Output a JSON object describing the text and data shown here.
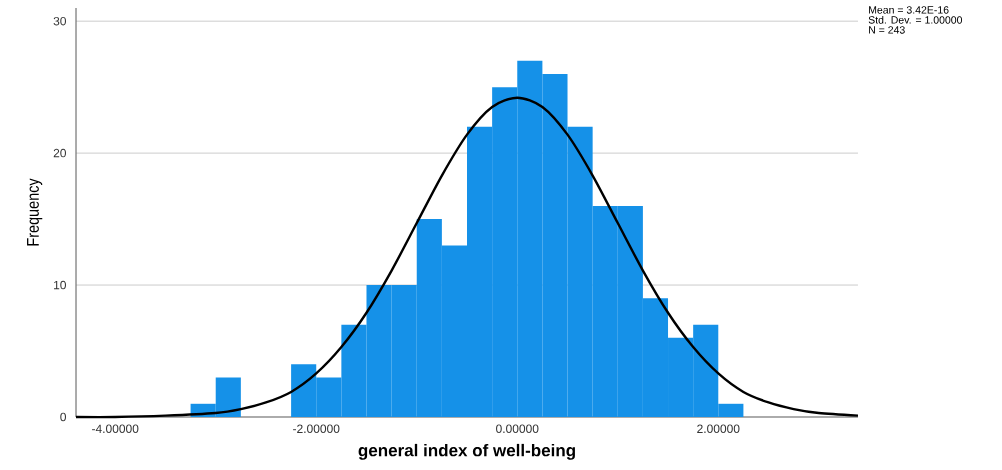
{
  "chart_data": {
    "type": "histogram",
    "xlabel": "general index of well-being",
    "ylabel": "Frequency",
    "bins": [
      -3.25,
      -3.0,
      -2.75,
      -2.5,
      -2.25,
      -2.0,
      -1.75,
      -1.5,
      -1.25,
      -1.0,
      -0.75,
      -0.5,
      -0.25,
      0.0,
      0.25,
      0.5,
      0.75,
      1.0,
      1.25,
      1.5,
      1.75,
      2.0,
      2.25
    ],
    "values": [
      1,
      3,
      0,
      0,
      4,
      3,
      7,
      10,
      10,
      15,
      13,
      22,
      25,
      27,
      26,
      22,
      16,
      16,
      9,
      6,
      7,
      1
    ],
    "color": "#1591e8",
    "series": [
      {
        "type": "line",
        "color": "#000000",
        "x": [
          -4.39,
          -4.0,
          -3.5,
          -3.0,
          -2.75,
          -2.5,
          -2.25,
          -2.0,
          -1.75,
          -1.5,
          -1.25,
          -1.0,
          -0.75,
          -0.5,
          -0.25,
          0.0,
          0.25,
          0.5,
          0.75,
          1.0,
          1.25,
          1.5,
          1.75,
          2.0,
          2.25,
          2.5,
          2.75,
          3.0,
          3.39
        ],
        "values": [
          0.0,
          0.0,
          0.1,
          0.3,
          0.6,
          1.1,
          1.9,
          3.3,
          5.3,
          7.9,
          11.1,
          14.7,
          18.3,
          21.4,
          23.5,
          24.2,
          23.5,
          21.4,
          18.3,
          14.7,
          11.1,
          7.9,
          5.3,
          3.3,
          1.9,
          1.1,
          0.6,
          0.3,
          0.1
        ]
      }
    ],
    "xlim": [
      -4.39,
      3.39
    ],
    "ylim": [
      0,
      31
    ],
    "xticks": [
      {
        "value": -4,
        "label": "-4.00000"
      },
      {
        "value": -2,
        "label": "-2.00000"
      },
      {
        "value": 0,
        "label": "0.00000"
      },
      {
        "value": 2,
        "label": "2.00000"
      }
    ],
    "yticks": [
      0,
      10,
      20,
      30
    ],
    "grid": "y",
    "legend": false,
    "marker": "none",
    "line_style": "solid",
    "annotations": [
      "Mean = 3.42E-16",
      "Std. Dev. = 1.00000",
      "N = 243"
    ]
  }
}
